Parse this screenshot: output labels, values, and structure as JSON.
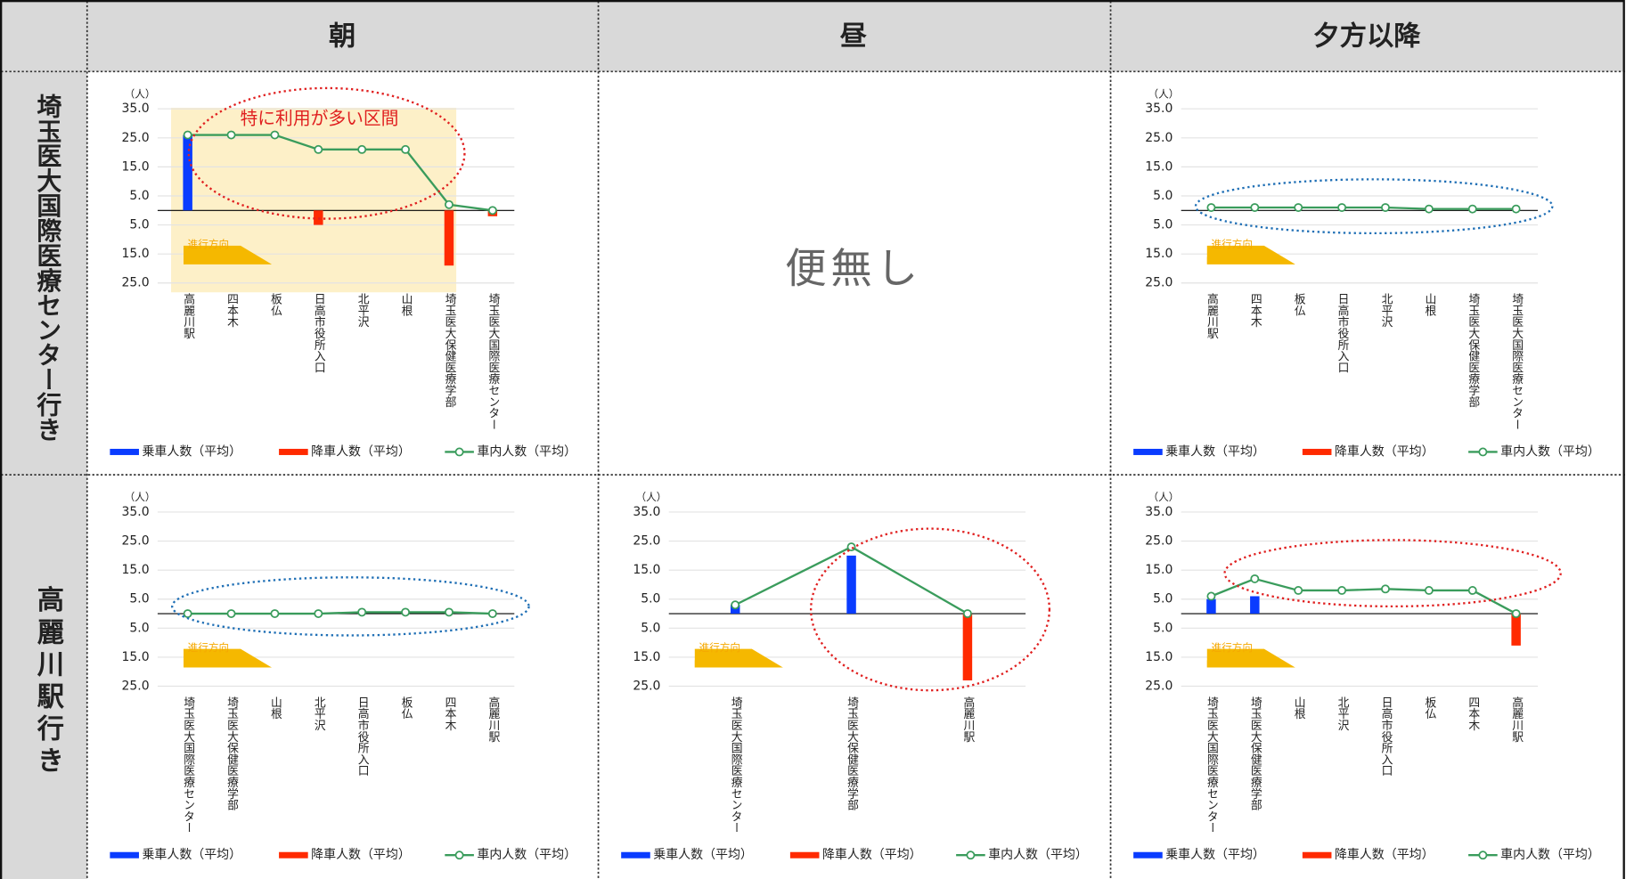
{
  "table": {
    "columns": [
      "朝",
      "昼",
      "夕方以降"
    ],
    "rows": [
      "埼玉医大国際医療センター行き",
      "高麗川駅行き"
    ],
    "no_service": "便無し"
  },
  "chart_data": [
    {
      "type": "bar",
      "unit": "（人）",
      "direction_label": "進行方向",
      "annotation": "特に利用が多い区間",
      "categories": [
        "高麗川駅",
        "四本木",
        "板仏",
        "日高市役所入口",
        "北平沢",
        "山根",
        "埼玉医大保健医療学部",
        "埼玉医大国際医療センター"
      ],
      "series": [
        {
          "name": "乗車人数（平均）",
          "type": "bar",
          "color": "#0a3cff",
          "values": [
            26,
            0,
            0,
            0,
            0,
            0,
            0,
            0
          ]
        },
        {
          "name": "降車人数（平均）",
          "type": "bar",
          "color": "#ff2a00",
          "values": [
            0,
            0,
            0,
            -5,
            0,
            0,
            -19,
            -2
          ]
        },
        {
          "name": "車内人数（平均）",
          "type": "line",
          "color": "#3a9c5c",
          "values": [
            26,
            26,
            26,
            21,
            21,
            21,
            2,
            0
          ]
        }
      ],
      "ylim": [
        -25,
        35
      ],
      "yticks": [
        {
          "value": 35,
          "label": "35.0"
        },
        {
          "value": 25,
          "label": "25.0"
        },
        {
          "value": 15,
          "label": "15.0"
        },
        {
          "value": 5,
          "label": "5.0"
        },
        {
          "value": -5,
          "label": "5.0"
        },
        {
          "value": -15,
          "label": "15.0"
        },
        {
          "value": -25,
          "label": "25.0"
        }
      ],
      "grid": true
    },
    {
      "type": "bar",
      "unit": "（人）",
      "direction_label": "進行方向",
      "categories": [
        "高麗川駅",
        "四本木",
        "板仏",
        "日高市役所入口",
        "北平沢",
        "山根",
        "埼玉医大保健医療学部",
        "埼玉医大国際医療センター"
      ],
      "series": [
        {
          "name": "乗車人数（平均）",
          "type": "bar",
          "color": "#0a3cff",
          "values": [
            0,
            0,
            0,
            0,
            0,
            0,
            0,
            0
          ]
        },
        {
          "name": "降車人数（平均）",
          "type": "bar",
          "color": "#ff2a00",
          "values": [
            0,
            0,
            0,
            0,
            0,
            0,
            0,
            0
          ]
        },
        {
          "name": "車内人数（平均）",
          "type": "line",
          "color": "#3a9c5c",
          "values": [
            1,
            1,
            1,
            1,
            1,
            0.5,
            0.5,
            0.5
          ]
        }
      ],
      "ylim": [
        -25,
        35
      ],
      "yticks": [
        {
          "value": 35,
          "label": "35.0"
        },
        {
          "value": 25,
          "label": "25.0"
        },
        {
          "value": 15,
          "label": "15.0"
        },
        {
          "value": 5,
          "label": "5.0"
        },
        {
          "value": -5,
          "label": "5.0"
        },
        {
          "value": -15,
          "label": "15.0"
        },
        {
          "value": -25,
          "label": "25.0"
        }
      ],
      "grid": true
    },
    {
      "type": "bar",
      "unit": "（人）",
      "direction_label": "進行方向",
      "categories": [
        "埼玉医大国際医療センター",
        "埼玉医大保健医療学部",
        "山根",
        "北平沢",
        "日高市役所入口",
        "板仏",
        "四本木",
        "高麗川駅"
      ],
      "series": [
        {
          "name": "乗車人数（平均）",
          "type": "bar",
          "color": "#0a3cff",
          "values": [
            0,
            0,
            0,
            0,
            0,
            0,
            0,
            0
          ]
        },
        {
          "name": "降車人数（平均）",
          "type": "bar",
          "color": "#ff2a00",
          "values": [
            0,
            0,
            0,
            0,
            0,
            0,
            0,
            0
          ]
        },
        {
          "name": "車内人数（平均）",
          "type": "line",
          "color": "#3a9c5c",
          "values": [
            0,
            0,
            0,
            0,
            0.5,
            0.5,
            0.5,
            0
          ]
        }
      ],
      "ylim": [
        -25,
        35
      ],
      "yticks": [
        {
          "value": 35,
          "label": "35.0"
        },
        {
          "value": 25,
          "label": "25.0"
        },
        {
          "value": 15,
          "label": "15.0"
        },
        {
          "value": 5,
          "label": "5.0"
        },
        {
          "value": -5,
          "label": "5.0"
        },
        {
          "value": -15,
          "label": "15.0"
        },
        {
          "value": -25,
          "label": "25.0"
        }
      ],
      "grid": true
    },
    {
      "type": "bar",
      "unit": "（人）",
      "direction_label": "進行方向",
      "categories": [
        "埼玉医大国際医療センター",
        "埼玉医大保健医療学部",
        "高麗川駅"
      ],
      "series": [
        {
          "name": "乗車人数（平均）",
          "type": "bar",
          "color": "#0a3cff",
          "values": [
            3,
            20,
            0
          ]
        },
        {
          "name": "降車人数（平均）",
          "type": "bar",
          "color": "#ff2a00",
          "values": [
            0,
            0,
            -23
          ]
        },
        {
          "name": "車内人数（平均）",
          "type": "line",
          "color": "#3a9c5c",
          "values": [
            3,
            23,
            0
          ]
        }
      ],
      "ylim": [
        -25,
        35
      ],
      "yticks": [
        {
          "value": 35,
          "label": "35.0"
        },
        {
          "value": 25,
          "label": "25.0"
        },
        {
          "value": 15,
          "label": "15.0"
        },
        {
          "value": 5,
          "label": "5.0"
        },
        {
          "value": -5,
          "label": "5.0"
        },
        {
          "value": -15,
          "label": "15.0"
        },
        {
          "value": -25,
          "label": "25.0"
        }
      ],
      "grid": true
    },
    {
      "type": "bar",
      "unit": "（人）",
      "direction_label": "進行方向",
      "categories": [
        "埼玉医大国際医療センター",
        "埼玉医大保健医療学部",
        "山根",
        "北平沢",
        "日高市役所入口",
        "板仏",
        "四本木",
        "高麗川駅"
      ],
      "series": [
        {
          "name": "乗車人数（平均）",
          "type": "bar",
          "color": "#0a3cff",
          "values": [
            5,
            6,
            0,
            0,
            0,
            0,
            0,
            0
          ]
        },
        {
          "name": "降車人数（平均）",
          "type": "bar",
          "color": "#ff2a00",
          "values": [
            0,
            0,
            0,
            0,
            0,
            0,
            0,
            -11
          ]
        },
        {
          "name": "車内人数（平均）",
          "type": "line",
          "color": "#3a9c5c",
          "values": [
            6,
            12,
            8,
            8,
            8.5,
            8,
            8,
            0
          ]
        }
      ],
      "ylim": [
        -25,
        35
      ],
      "yticks": [
        {
          "value": 35,
          "label": "35.0"
        },
        {
          "value": 25,
          "label": "25.0"
        },
        {
          "value": 15,
          "label": "15.0"
        },
        {
          "value": 5,
          "label": "5.0"
        },
        {
          "value": -5,
          "label": "5.0"
        },
        {
          "value": -15,
          "label": "15.0"
        },
        {
          "value": -25,
          "label": "25.0"
        }
      ],
      "grid": true
    }
  ]
}
